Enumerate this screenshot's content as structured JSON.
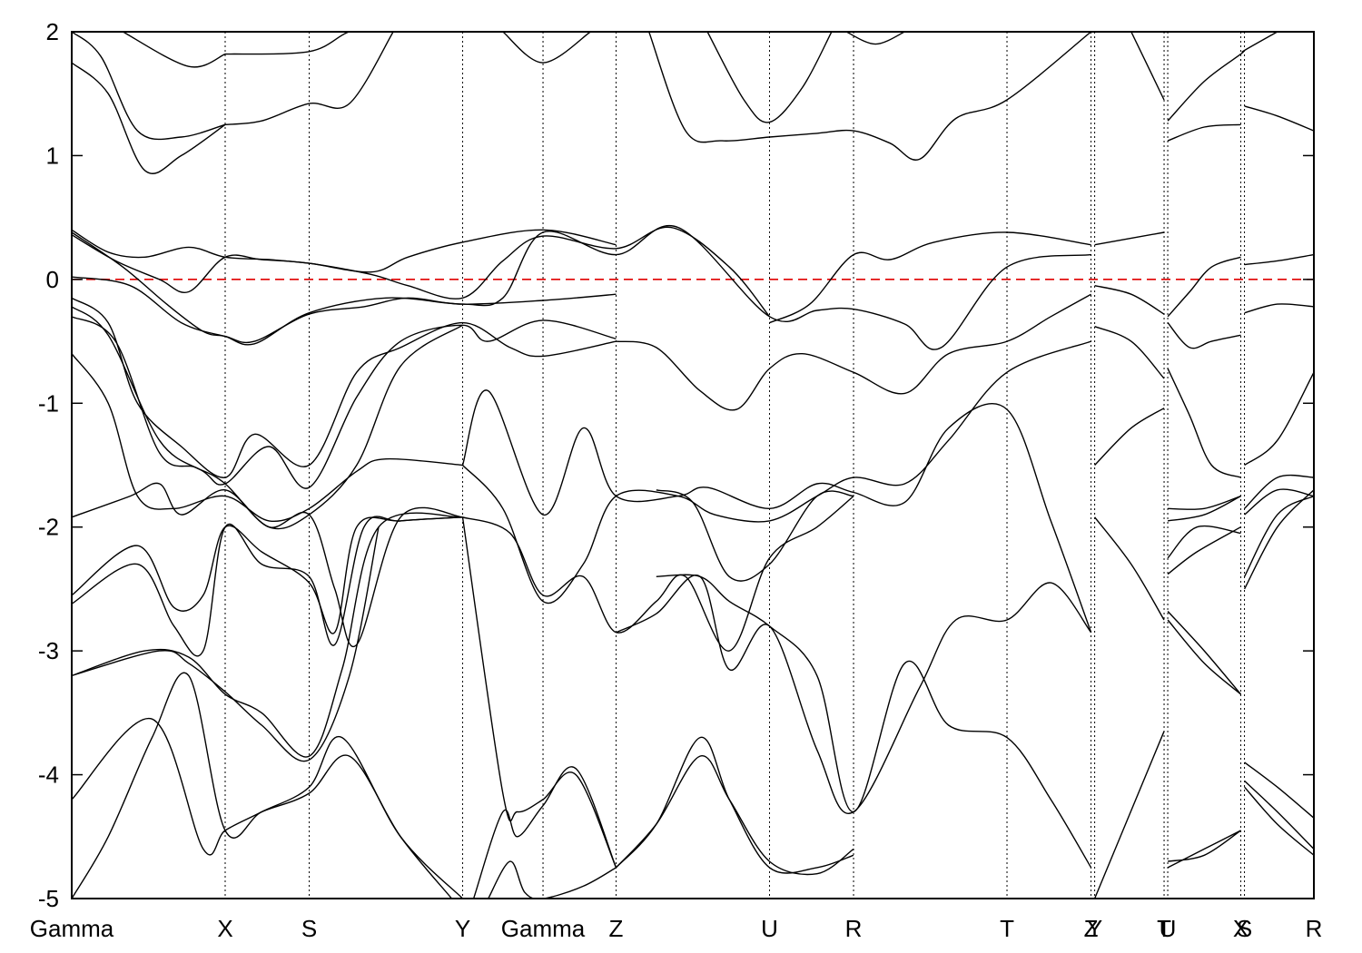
{
  "chart_data": {
    "type": "line",
    "title": "",
    "xlabel": "",
    "ylabel": "",
    "ylim": [
      -5,
      2
    ],
    "yticks": [
      -5,
      -4,
      -3,
      -2,
      -1,
      0,
      1,
      2
    ],
    "ytick_labels": [
      "-5",
      "-4",
      "-3",
      "-2",
      "-1",
      "0",
      "1",
      "2"
    ],
    "xlim": [
      0,
      17
    ],
    "kpoints": [
      {
        "label": "Gamma",
        "x": 0
      },
      {
        "label": "X",
        "x": 2.1
      },
      {
        "label": "S",
        "x": 3.25
      },
      {
        "label": "Y",
        "x": 5.35
      },
      {
        "label": "Gamma",
        "x": 6.45
      },
      {
        "label": "Z",
        "x": 7.45
      },
      {
        "label": "U",
        "x": 9.55
      },
      {
        "label": "R",
        "x": 10.7
      },
      {
        "label": "T",
        "x": 12.8
      },
      {
        "label": "Z",
        "x": 13.95
      },
      {
        "label": "Y",
        "x": 14.0
      },
      {
        "label": "T",
        "x": 14.95
      },
      {
        "label": "U",
        "x": 15.0
      },
      {
        "label": "X",
        "x": 16.0
      },
      {
        "label": "S",
        "x": 16.05
      },
      {
        "label": "R",
        "x": 17.0
      }
    ],
    "fermi_level": 0,
    "colors": {
      "bands": "#000000",
      "fermi": "#e00000",
      "grid": "#000000"
    },
    "series": [
      {
        "x": [
          0.0,
          0.5,
          1.0,
          1.5,
          2.1
        ],
        "y": [
          1.75,
          1.5,
          0.88,
          1.0,
          1.25
        ]
      },
      {
        "x": [
          0.0,
          0.4,
          0.9,
          1.5,
          2.1
        ],
        "y": [
          2.0,
          1.8,
          1.2,
          1.15,
          1.25
        ]
      },
      {
        "x": [
          0.7,
          1.6,
          2.1
        ],
        "y": [
          2.0,
          1.72,
          1.82
        ]
      },
      {
        "x": [
          2.1,
          2.6,
          3.25,
          3.8,
          4.4
        ],
        "y": [
          1.25,
          1.28,
          1.42,
          1.42,
          2.0
        ]
      },
      {
        "x": [
          2.1,
          3.25,
          3.8,
          4.2
        ],
        "y": [
          1.82,
          1.84,
          2.0,
          2.0
        ]
      },
      {
        "x": [
          5.9,
          6.45,
          7.1
        ],
        "y": [
          2.0,
          1.75,
          2.0
        ]
      },
      {
        "x": [
          7.9,
          8.4,
          8.9,
          9.55,
          10.2,
          10.7,
          11.2,
          11.6,
          12.1,
          12.8,
          13.95
        ],
        "y": [
          2.0,
          1.2,
          1.12,
          1.15,
          1.18,
          1.2,
          1.1,
          0.97,
          1.3,
          1.45,
          2.0
        ]
      },
      {
        "x": [
          8.7,
          9.2,
          9.55,
          10.0,
          10.4
        ],
        "y": [
          2.0,
          1.45,
          1.27,
          1.55,
          2.0
        ]
      },
      {
        "x": [
          10.6,
          11.0,
          11.4
        ],
        "y": [
          2.0,
          1.9,
          2.0
        ]
      },
      {
        "x": [
          14.5,
          14.95
        ],
        "y": [
          2.0,
          1.45
        ]
      },
      {
        "x": [
          15.0,
          15.5,
          16.0,
          16.05,
          16.5
        ],
        "y": [
          1.28,
          1.6,
          1.82,
          1.85,
          2.0
        ]
      },
      {
        "x": [
          15.0,
          15.5,
          16.0
        ],
        "y": [
          1.12,
          1.23,
          1.25
        ]
      },
      {
        "x": [
          16.05,
          16.5,
          17.0
        ],
        "y": [
          1.4,
          1.32,
          1.2
        ]
      },
      {
        "x": [
          0.0,
          0.5,
          1.0,
          1.6,
          2.1,
          2.7,
          3.25,
          4.1,
          4.6,
          5.35,
          6.45,
          7.45
        ],
        "y": [
          0.4,
          0.22,
          0.18,
          0.26,
          0.18,
          0.16,
          0.13,
          0.06,
          0.18,
          0.3,
          0.4,
          0.28
        ]
      },
      {
        "x": [
          0.0,
          0.6,
          1.2,
          1.6,
          2.1,
          2.6,
          3.25,
          4.1,
          4.6,
          5.35,
          5.9,
          6.45,
          7.45,
          8.2,
          9.0,
          9.55
        ],
        "y": [
          0.36,
          0.15,
          0.0,
          -0.1,
          0.18,
          0.16,
          0.13,
          0.04,
          -0.05,
          -0.15,
          0.15,
          0.35,
          0.25,
          0.42,
          0.1,
          -0.3
        ]
      },
      {
        "x": [
          0.0,
          0.8,
          1.5,
          2.1,
          2.5,
          3.25,
          4.0,
          4.6,
          5.35,
          6.45,
          7.45
        ],
        "y": [
          0.02,
          -0.05,
          -0.35,
          -0.46,
          -0.5,
          -0.28,
          -0.22,
          -0.15,
          -0.2,
          -0.17,
          -0.12
        ]
      },
      {
        "x": [
          0.0,
          0.7,
          1.3,
          1.8,
          2.1,
          2.5,
          3.25,
          4.3,
          5.35,
          5.9,
          6.45,
          7.45,
          8.3,
          9.55,
          10.2,
          10.7,
          11.4,
          11.9,
          12.8,
          13.95
        ],
        "y": [
          0.38,
          0.1,
          -0.2,
          -0.42,
          -0.46,
          -0.52,
          -0.27,
          -0.15,
          -0.2,
          -0.15,
          0.38,
          0.2,
          0.42,
          -0.3,
          -0.25,
          -0.24,
          -0.36,
          -0.55,
          0.1,
          0.2
        ]
      },
      {
        "x": [
          7.45,
          8.0,
          8.6,
          9.1,
          9.55,
          10.0,
          10.7,
          11.4,
          12.0,
          12.8,
          13.4,
          13.95
        ],
        "y": [
          -0.5,
          -0.55,
          -0.9,
          -1.05,
          -0.72,
          -0.6,
          -0.75,
          -0.92,
          -0.6,
          -0.5,
          -0.3,
          -0.12
        ]
      },
      {
        "x": [
          9.55,
          10.1,
          10.7,
          11.2,
          11.8,
          12.8,
          13.95
        ],
        "y": [
          -0.35,
          -0.2,
          0.2,
          0.16,
          0.3,
          0.38,
          0.28
        ]
      },
      {
        "x": [
          14.0,
          14.95
        ],
        "y": [
          0.28,
          0.38
        ]
      },
      {
        "x": [
          14.0,
          14.5,
          14.95
        ],
        "y": [
          -0.05,
          -0.12,
          -0.28
        ]
      },
      {
        "x": [
          14.0,
          14.5,
          14.95
        ],
        "y": [
          -0.38,
          -0.5,
          -0.8
        ]
      },
      {
        "x": [
          14.0,
          14.5,
          14.95
        ],
        "y": [
          -1.5,
          -1.2,
          -1.04
        ]
      },
      {
        "x": [
          15.0,
          15.3,
          15.6,
          16.0
        ],
        "y": [
          -0.3,
          -0.1,
          0.1,
          0.18
        ]
      },
      {
        "x": [
          15.0,
          15.3,
          15.6,
          16.0
        ],
        "y": [
          -0.35,
          -0.55,
          -0.5,
          -0.45
        ]
      },
      {
        "x": [
          16.05,
          16.5,
          17.0
        ],
        "y": [
          0.12,
          0.15,
          0.2
        ]
      },
      {
        "x": [
          16.05,
          16.5,
          17.0
        ],
        "y": [
          -0.27,
          -0.2,
          -0.22
        ]
      },
      {
        "x": [
          15.0,
          15.3,
          15.6,
          16.0
        ],
        "y": [
          -0.72,
          -1.1,
          -1.5,
          -1.6
        ]
      },
      {
        "x": [
          16.05,
          16.5,
          17.0
        ],
        "y": [
          -1.5,
          -1.3,
          -0.75
        ]
      },
      {
        "x": [
          0.0,
          0.5,
          0.9,
          1.5,
          2.1,
          2.5,
          3.25,
          3.9,
          4.5,
          5.35,
          6.0,
          6.45,
          7.45
        ],
        "y": [
          -0.15,
          -0.35,
          -1.0,
          -1.35,
          -1.6,
          -1.25,
          -1.5,
          -0.75,
          -0.55,
          -0.35,
          -0.55,
          -0.62,
          -0.5
        ]
      },
      {
        "x": [
          0.0,
          0.5,
          1.2,
          1.8,
          2.1,
          2.7,
          3.25,
          3.9,
          4.5,
          5.35,
          5.7,
          6.45,
          7.45
        ],
        "y": [
          -0.22,
          -0.45,
          -1.3,
          -1.55,
          -1.65,
          -1.35,
          -1.68,
          -0.95,
          -0.5,
          -0.37,
          -0.5,
          -0.33,
          -0.48
        ]
      },
      {
        "x": [
          0.0,
          0.6,
          1.2,
          1.7,
          2.1,
          2.7,
          3.25,
          3.9,
          4.5,
          5.35
        ],
        "y": [
          -0.3,
          -0.5,
          -1.4,
          -1.52,
          -1.65,
          -2.0,
          -1.9,
          -1.5,
          -0.7,
          -0.37
        ]
      },
      {
        "x": [
          0.0,
          0.5,
          0.9,
          1.4,
          2.1,
          2.7,
          3.25,
          3.9,
          4.3,
          5.35
        ],
        "y": [
          -0.6,
          -1.0,
          -1.75,
          -1.85,
          -1.75,
          -1.95,
          -1.85,
          -1.55,
          -1.45,
          -1.5
        ]
      },
      {
        "x": [
          0.0,
          0.8,
          1.2,
          1.5,
          2.1,
          2.7,
          3.25,
          3.6,
          3.9,
          4.5,
          5.35
        ],
        "y": [
          -1.92,
          -1.75,
          -1.65,
          -1.9,
          -1.7,
          -2.0,
          -1.9,
          -2.5,
          -2.95,
          -1.92,
          -1.92
        ]
      },
      {
        "x": [
          5.35,
          5.7,
          6.45,
          7.0,
          7.45,
          8.3,
          8.7,
          9.55,
          10.2,
          10.7,
          11.4,
          12.0,
          12.8,
          13.4,
          13.95
        ],
        "y": [
          -1.5,
          -0.9,
          -1.9,
          -1.2,
          -1.75,
          -1.75,
          -1.68,
          -1.85,
          -1.65,
          -1.72,
          -1.8,
          -1.2,
          -1.05,
          -1.95,
          -2.85
        ]
      },
      {
        "x": [
          5.35,
          5.9,
          6.45,
          7.0,
          7.45,
          8.3,
          8.8,
          9.55,
          10.2,
          10.7,
          11.4,
          12.0,
          12.8,
          13.95
        ],
        "y": [
          -1.5,
          -1.85,
          -2.6,
          -2.3,
          -1.75,
          -1.75,
          -1.9,
          -1.95,
          -1.75,
          -1.6,
          -1.65,
          -1.3,
          -0.75,
          -0.5
        ]
      },
      {
        "x": [
          8.0,
          8.5,
          9.0,
          9.55,
          10.2,
          10.7
        ],
        "y": [
          -1.7,
          -1.8,
          -2.4,
          -2.3,
          -1.75,
          -1.75
        ]
      },
      {
        "x": [
          0.0,
          0.9,
          1.4,
          1.8,
          2.1,
          2.6,
          3.25,
          3.6,
          3.9,
          4.5,
          5.35
        ],
        "y": [
          -2.55,
          -2.15,
          -2.65,
          -2.55,
          -2.0,
          -2.2,
          -2.45,
          -2.85,
          -2.0,
          -1.95,
          -1.92
        ]
      },
      {
        "x": [
          0.0,
          0.9,
          1.4,
          1.8,
          2.1,
          2.6,
          3.25,
          3.6,
          4.0,
          4.5,
          5.35
        ],
        "y": [
          -2.62,
          -2.3,
          -2.8,
          -3.0,
          -2.0,
          -2.3,
          -2.4,
          -2.95,
          -2.0,
          -1.95,
          -1.92
        ]
      },
      {
        "x": [
          5.35,
          6.0,
          6.45,
          7.0,
          7.45,
          8.0,
          8.4,
          9.0,
          9.55,
          10.2,
          10.7
        ],
        "y": [
          -1.92,
          -2.05,
          -2.55,
          -2.4,
          -2.85,
          -2.6,
          -2.4,
          -3.0,
          -2.25,
          -2.0,
          -1.75
        ]
      },
      {
        "x": [
          0.0,
          1.0,
          1.6,
          2.1,
          2.6,
          3.25,
          3.7,
          4.2,
          5.35
        ],
        "y": [
          -3.2,
          -3.0,
          -3.05,
          -3.35,
          -3.5,
          -3.85,
          -3.15,
          -2.0,
          -1.92
        ]
      },
      {
        "x": [
          0.0,
          1.2,
          1.6,
          2.1,
          2.6,
          3.25,
          3.8,
          4.2
        ],
        "y": [
          -3.2,
          -3.0,
          -3.1,
          -3.33,
          -3.6,
          -3.88,
          -3.2,
          -2.0
        ]
      },
      {
        "x": [
          7.45,
          8.0,
          8.6,
          9.0,
          9.55,
          10.2,
          10.7,
          11.6,
          12.1,
          12.8,
          13.4,
          13.95
        ],
        "y": [
          -2.85,
          -2.7,
          -2.4,
          -3.15,
          -2.8,
          -3.8,
          -4.3,
          -3.3,
          -2.75,
          -2.75,
          -2.45,
          -2.85
        ]
      },
      {
        "x": [
          8.0,
          8.6,
          9.0,
          9.55,
          10.2,
          10.7,
          11.4,
          12.0,
          12.8,
          13.4,
          13.95
        ],
        "y": [
          -2.4,
          -2.4,
          -2.6,
          -2.8,
          -3.2,
          -4.3,
          -3.1,
          -3.6,
          -3.7,
          -4.2,
          -4.75
        ]
      },
      {
        "x": [
          14.0,
          14.5,
          14.95
        ],
        "y": [
          -1.92,
          -2.3,
          -2.75
        ]
      },
      {
        "x": [
          15.0,
          15.5,
          16.0
        ],
        "y": [
          -1.85,
          -1.85,
          -1.75
        ]
      },
      {
        "x": [
          15.0,
          15.5,
          16.0
        ],
        "y": [
          -1.95,
          -1.9,
          -1.75
        ]
      },
      {
        "x": [
          15.0,
          15.4,
          16.0
        ],
        "y": [
          -2.25,
          -2.0,
          -2.05
        ]
      },
      {
        "x": [
          15.0,
          15.4,
          16.0
        ],
        "y": [
          -2.38,
          -2.2,
          -2.0
        ]
      },
      {
        "x": [
          15.0,
          15.5,
          16.0
        ],
        "y": [
          -2.68,
          -3.0,
          -3.35
        ]
      },
      {
        "x": [
          15.0,
          15.5,
          16.0
        ],
        "y": [
          -2.75,
          -3.1,
          -3.35
        ]
      },
      {
        "x": [
          16.05,
          16.5,
          17.0
        ],
        "y": [
          -1.85,
          -1.6,
          -1.6
        ]
      },
      {
        "x": [
          16.05,
          16.5,
          17.0
        ],
        "y": [
          -1.9,
          -1.7,
          -1.75
        ]
      },
      {
        "x": [
          16.05,
          16.5,
          17.0
        ],
        "y": [
          -2.4,
          -1.9,
          -1.75
        ]
      },
      {
        "x": [
          16.05,
          16.5,
          17.0
        ],
        "y": [
          -2.5,
          -2.0,
          -1.7
        ]
      },
      {
        "x": [
          0.0,
          1.1,
          1.8,
          2.1,
          2.6,
          3.25,
          3.7,
          4.5,
          5.35
        ],
        "y": [
          -4.2,
          -3.55,
          -4.6,
          -4.45,
          -4.3,
          -4.1,
          -3.7,
          -4.5,
          -5.0
        ]
      },
      {
        "x": [
          0.0,
          0.5,
          1.1,
          1.6,
          2.1,
          2.6,
          3.25,
          3.8,
          4.5,
          5.2
        ],
        "y": [
          -5.0,
          -4.5,
          -3.7,
          -3.2,
          -4.45,
          -4.3,
          -4.15,
          -3.85,
          -4.5,
          -5.0
        ]
      },
      {
        "x": [
          5.35,
          5.9,
          6.1,
          6.45,
          6.9,
          7.45
        ],
        "y": [
          -1.92,
          -4.15,
          -4.3,
          -4.2,
          -4.0,
          -4.75
        ]
      },
      {
        "x": [
          5.5,
          5.9,
          6.1,
          6.45,
          6.9,
          7.45
        ],
        "y": [
          -5.0,
          -4.3,
          -4.5,
          -4.25,
          -3.95,
          -4.75
        ]
      },
      {
        "x": [
          5.7,
          6.0,
          6.2,
          6.45,
          7.0,
          7.45
        ],
        "y": [
          -5.0,
          -4.7,
          -4.95,
          -5.0,
          -4.9,
          -4.75
        ]
      },
      {
        "x": [
          7.45,
          8.0,
          8.6,
          9.0,
          9.55,
          10.2,
          10.7
        ],
        "y": [
          -4.75,
          -4.4,
          -3.85,
          -4.2,
          -4.7,
          -4.8,
          -4.6
        ]
      },
      {
        "x": [
          7.45,
          8.0,
          8.6,
          9.0,
          9.55,
          10.2,
          10.7
        ],
        "y": [
          -4.75,
          -4.4,
          -3.7,
          -4.2,
          -4.75,
          -4.75,
          -4.65
        ]
      },
      {
        "x": [
          14.0,
          14.95
        ],
        "y": [
          -5.0,
          -3.65
        ]
      },
      {
        "x": [
          15.0,
          15.5,
          16.0
        ],
        "y": [
          -4.7,
          -4.65,
          -4.45
        ]
      },
      {
        "x": [
          15.0,
          15.5,
          16.0
        ],
        "y": [
          -4.75,
          -4.6,
          -4.45
        ]
      },
      {
        "x": [
          16.05,
          16.5,
          17.0
        ],
        "y": [
          -3.9,
          -4.1,
          -4.35
        ]
      },
      {
        "x": [
          16.05,
          16.5,
          17.0
        ],
        "y": [
          -4.05,
          -4.3,
          -4.6
        ]
      },
      {
        "x": [
          16.05,
          16.5,
          17.0
        ],
        "y": [
          -4.1,
          -4.4,
          -4.65
        ]
      }
    ]
  }
}
